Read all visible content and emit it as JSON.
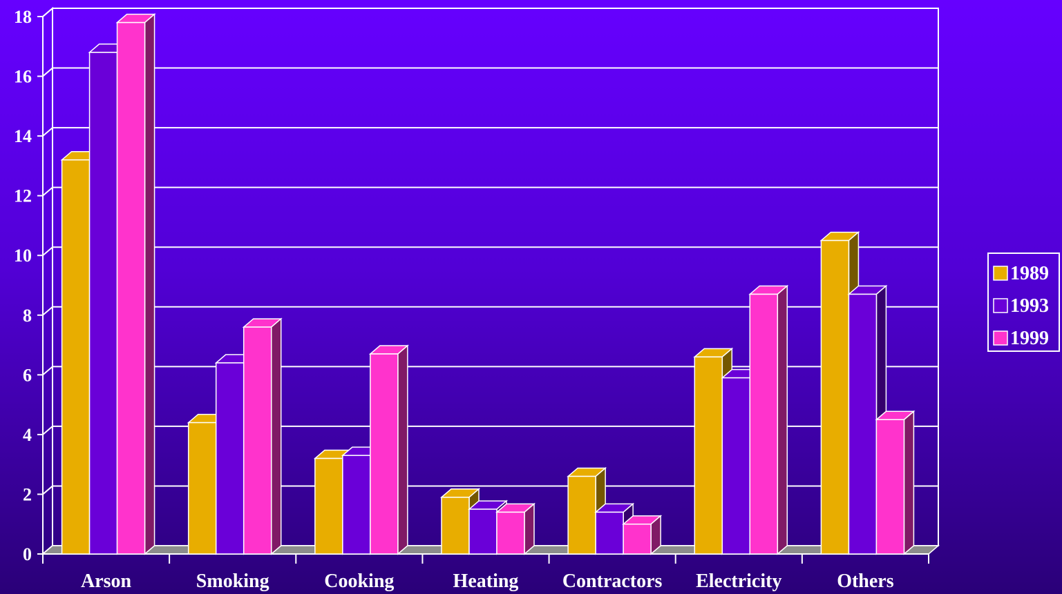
{
  "chart_data": {
    "type": "bar",
    "categories": [
      "Arson",
      "Smoking",
      "Cooking",
      "Heating",
      "Contractors",
      "Electricity",
      "Others"
    ],
    "series": [
      {
        "name": "1989",
        "values": [
          13.2,
          4.4,
          3.2,
          1.9,
          2.6,
          6.6,
          10.5
        ],
        "color": "#e8ad00"
      },
      {
        "name": "1993",
        "values": [
          16.8,
          6.4,
          3.3,
          1.5,
          1.4,
          5.9,
          8.7
        ],
        "color": "#6a00d8"
      },
      {
        "name": "1999",
        "values": [
          17.8,
          7.6,
          6.7,
          1.4,
          1.0,
          8.7,
          4.5
        ],
        "color": "#ff33cc"
      }
    ],
    "ylim": [
      0,
      18
    ],
    "yticks": [
      "0",
      "2",
      "4",
      "6",
      "8",
      "10",
      "12",
      "14",
      "16",
      "18"
    ],
    "grid": true,
    "legend_position": "right",
    "three_d": true
  }
}
